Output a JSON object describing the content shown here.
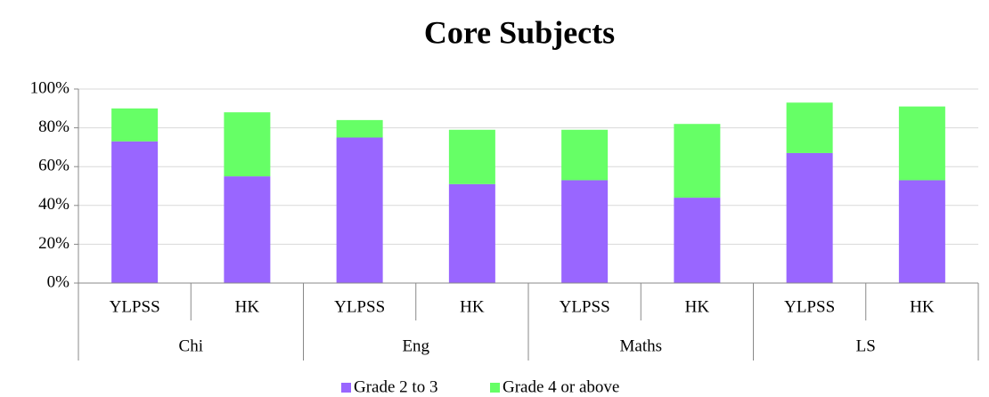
{
  "chart_data": {
    "type": "bar",
    "stacked": true,
    "title": "Core Subjects",
    "categories": [
      "YLPSS",
      "HK",
      "YLPSS",
      "HK",
      "YLPSS",
      "HK",
      "YLPSS",
      "HK"
    ],
    "groups": [
      "Chi",
      "Eng",
      "Maths",
      "LS"
    ],
    "series": [
      {
        "name": "Grade 2 to 3",
        "color": "#9966ff",
        "values": [
          73,
          55,
          75,
          51,
          53,
          44,
          67,
          53
        ]
      },
      {
        "name": "Grade 4 or above",
        "color": "#66ff66",
        "values": [
          17,
          33,
          9,
          28,
          26,
          38,
          26,
          38
        ]
      }
    ],
    "ylim": [
      0,
      100
    ],
    "yticks": [
      {
        "value": 0,
        "label": "0%"
      },
      {
        "value": 20,
        "label": "20%"
      },
      {
        "value": 40,
        "label": "40%"
      },
      {
        "value": 60,
        "label": "60%"
      },
      {
        "value": 80,
        "label": "80%"
      },
      {
        "value": 100,
        "label": "100%"
      }
    ],
    "grid": true,
    "legend": "bottom"
  }
}
